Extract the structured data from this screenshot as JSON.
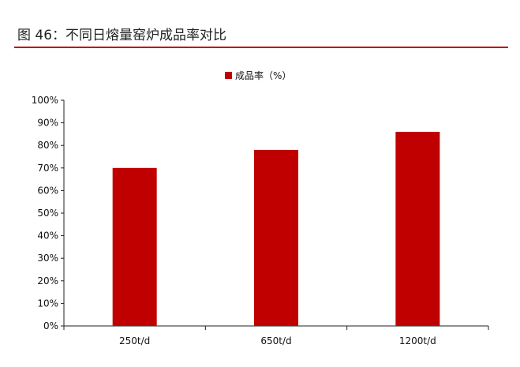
{
  "figure": {
    "title": "图 46：不同日熔量窑炉成品率对比"
  },
  "colors": {
    "accent": "#c00000",
    "bar": "#c00000",
    "axis": "#222222",
    "text": "#111111"
  },
  "chart_data": {
    "type": "bar",
    "categories": [
      "250t/d",
      "650t/d",
      "1200t/d"
    ],
    "series": [
      {
        "name": "成品率（%）",
        "values": [
          70,
          78,
          86
        ]
      }
    ],
    "ylim": [
      0,
      100
    ],
    "yticks": [
      0,
      10,
      20,
      30,
      40,
      50,
      60,
      70,
      80,
      90,
      100
    ],
    "ytick_labels": [
      "0%",
      "10%",
      "20%",
      "30%",
      "40%",
      "50%",
      "60%",
      "70%",
      "80%",
      "90%",
      "100%"
    ],
    "grid": false,
    "legend": "top-center"
  }
}
